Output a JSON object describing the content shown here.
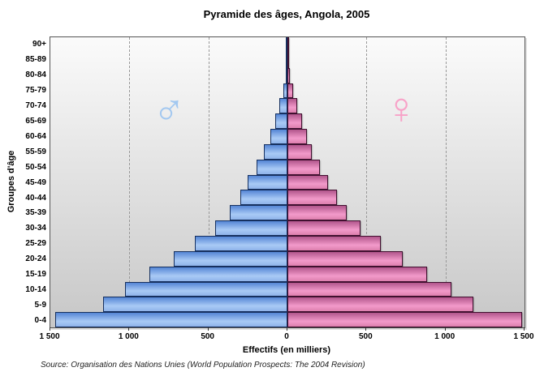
{
  "title": "Pyramide des âges, Angola, 2005",
  "axes": {
    "y_title": "Groupes d'âge",
    "x_title": "Effectifs (en milliers)",
    "x_tick_labels": [
      "1 500",
      "1 000",
      "500",
      "0",
      "500",
      "1 000",
      "1 500"
    ],
    "x_tick_values": [
      -1500,
      -1000,
      -500,
      0,
      500,
      1000,
      1500
    ],
    "gridline_values": [
      -1000,
      -500,
      500,
      1000
    ],
    "x_max": 1500
  },
  "symbols": {
    "male": "♂",
    "female": "♀"
  },
  "source": "Source: Organisation des Nations Unies (World Population Prospects: The 2004 Revision)",
  "colors": {
    "male_border": "#16305f",
    "male_gradient_top": "#5586d6",
    "male_gradient_light": "#a9caf5",
    "male_gradient_bottom": "#8fb3ea",
    "female_border": "#40102f",
    "female_gradient_top": "#b2568c",
    "female_gradient_light": "#f29aca",
    "female_gradient_bottom": "#dd7fae",
    "male_symbol": "#a3c8f0",
    "female_symbol": "#f8a2c8",
    "plot_bg_top": "#fbfbfb",
    "plot_bg_bottom": "#c7c7c7",
    "gridline": "#999999",
    "center_line": "#555555"
  },
  "chart_data": {
    "type": "bar",
    "subtype": "population-pyramid",
    "title": "Pyramide des âges, Angola, 2005",
    "xlabel": "Effectifs (en milliers)",
    "ylabel": "Groupes d'âge",
    "unit": "thousands",
    "xlim": [
      -1500,
      1500
    ],
    "grid": "vertical-dashed at ±500 and ±1000",
    "legend": "none (sides marked by ♂ left / ♀ right symbols)",
    "categories_top_to_bottom": [
      "90+",
      "85-89",
      "80-84",
      "75-79",
      "70-74",
      "65-69",
      "60-64",
      "55-59",
      "50-54",
      "45-49",
      "40-44",
      "35-39",
      "30-34",
      "25-29",
      "20-24",
      "15-19",
      "10-14",
      "5-9",
      "0-4"
    ],
    "series": [
      {
        "name": "♂",
        "side": "left",
        "values_top_to_bottom": [
          1,
          4,
          12,
          28,
          50,
          78,
          110,
          150,
          195,
          250,
          300,
          365,
          455,
          585,
          720,
          875,
          1025,
          1165,
          1470
        ]
      },
      {
        "name": "♀",
        "side": "right",
        "values_top_to_bottom": [
          1,
          5,
          15,
          35,
          62,
          92,
          125,
          155,
          207,
          257,
          315,
          375,
          462,
          592,
          730,
          885,
          1040,
          1175,
          1485
        ]
      }
    ]
  }
}
